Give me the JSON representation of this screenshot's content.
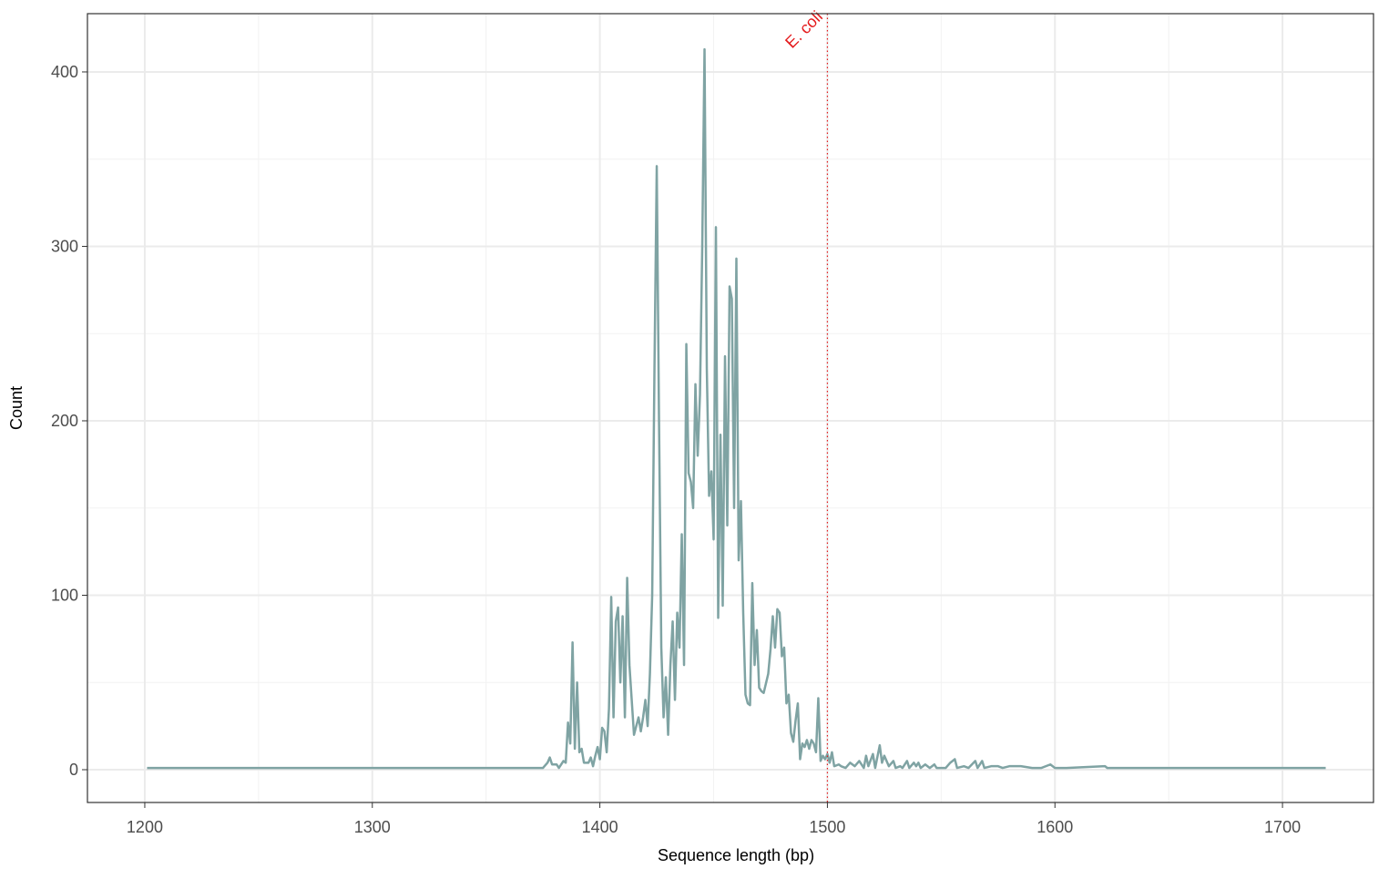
{
  "chart_data": {
    "type": "line",
    "x_label": "Sequence length (bp)",
    "y_label": "Count",
    "xlim": [
      1174.8,
      1740
    ],
    "ylim": [
      -18.8,
      433.4
    ],
    "xticks": [
      1200,
      1300,
      1400,
      1500,
      1600,
      1700
    ],
    "yticks": [
      0,
      100,
      200,
      300,
      400
    ],
    "x_minor_grid": [
      1250,
      1350,
      1450,
      1550,
      1650
    ],
    "y_minor_grid": [
      50,
      150,
      250,
      350
    ],
    "grid": true,
    "annotation": {
      "x": 1500,
      "label": "E. coli",
      "color": "#e41a1c"
    },
    "series": [
      {
        "color": "#7fa3a3",
        "x": [
          1201,
          1375,
          1377,
          1378,
          1379,
          1381,
          1382,
          1384,
          1385,
          1386,
          1387,
          1388,
          1389,
          1390,
          1391,
          1392,
          1393,
          1395,
          1396,
          1397,
          1398,
          1399,
          1400,
          1401,
          1402,
          1403,
          1404,
          1405,
          1406,
          1407,
          1408,
          1409,
          1410,
          1411,
          1412,
          1413,
          1415,
          1416,
          1417,
          1418,
          1419,
          1420,
          1421,
          1422,
          1423,
          1424,
          1425,
          1426,
          1427,
          1428,
          1429,
          1430,
          1431,
          1432,
          1433,
          1434,
          1435,
          1436,
          1437,
          1438,
          1439,
          1440,
          1441,
          1442,
          1443,
          1444,
          1445,
          1446,
          1447,
          1448,
          1449,
          1450,
          1451,
          1452,
          1453,
          1454,
          1455,
          1456,
          1457,
          1458,
          1459,
          1460,
          1461,
          1462,
          1463,
          1464,
          1465,
          1466,
          1467,
          1468,
          1469,
          1470,
          1471,
          1472,
          1474,
          1475,
          1476,
          1477,
          1478,
          1479,
          1480,
          1481,
          1482,
          1483,
          1484,
          1485,
          1486,
          1487,
          1488,
          1489,
          1490,
          1491,
          1492,
          1493,
          1494,
          1495,
          1496,
          1497,
          1498,
          1499,
          1500,
          1501,
          1502,
          1503,
          1505,
          1506,
          1508,
          1510,
          1512,
          1514,
          1516,
          1517,
          1518,
          1520,
          1521,
          1523,
          1524,
          1525,
          1527,
          1529,
          1530,
          1532,
          1533,
          1535,
          1536,
          1538,
          1539,
          1540,
          1541,
          1543,
          1545,
          1547,
          1548,
          1552,
          1554,
          1556,
          1557,
          1560,
          1562,
          1565,
          1566,
          1568,
          1569,
          1572,
          1575,
          1577,
          1580,
          1585,
          1590,
          1594,
          1598,
          1600,
          1605,
          1622,
          1623,
          1719
        ],
        "values": [
          1,
          1,
          4,
          7,
          3,
          3,
          1,
          5,
          4,
          27,
          15,
          73,
          12,
          50,
          10,
          12,
          4,
          4,
          7,
          2,
          8,
          13,
          6,
          24,
          22,
          10,
          35,
          99,
          30,
          85,
          93,
          50,
          88,
          30,
          110,
          60,
          20,
          25,
          30,
          22,
          30,
          40,
          25,
          55,
          100,
          230,
          346,
          200,
          70,
          30,
          53,
          20,
          60,
          85,
          40,
          90,
          70,
          135,
          60,
          244,
          170,
          165,
          150,
          221,
          180,
          215,
          300,
          413,
          230,
          157,
          171,
          132,
          311,
          87,
          192,
          94,
          237,
          140,
          277,
          270,
          150,
          293,
          120,
          154,
          90,
          43,
          38,
          37,
          107,
          60,
          80,
          47,
          45,
          44,
          55,
          69,
          88,
          70,
          92,
          90,
          65,
          70,
          38,
          43,
          21,
          16,
          28,
          38,
          6,
          15,
          13,
          17,
          12,
          17,
          15,
          10,
          41,
          5,
          8,
          6,
          9,
          4,
          10,
          2,
          3,
          2,
          1,
          4,
          2,
          5,
          1,
          8,
          2,
          9,
          1,
          14,
          4,
          8,
          2,
          5,
          1,
          2,
          1,
          5,
          1,
          4,
          2,
          4,
          1,
          3,
          1,
          3,
          1,
          1,
          4,
          6,
          1,
          2,
          1,
          5,
          1,
          5,
          1,
          2,
          2,
          1,
          2,
          2,
          1,
          1,
          3,
          1,
          1,
          2,
          1,
          1
        ]
      }
    ]
  }
}
